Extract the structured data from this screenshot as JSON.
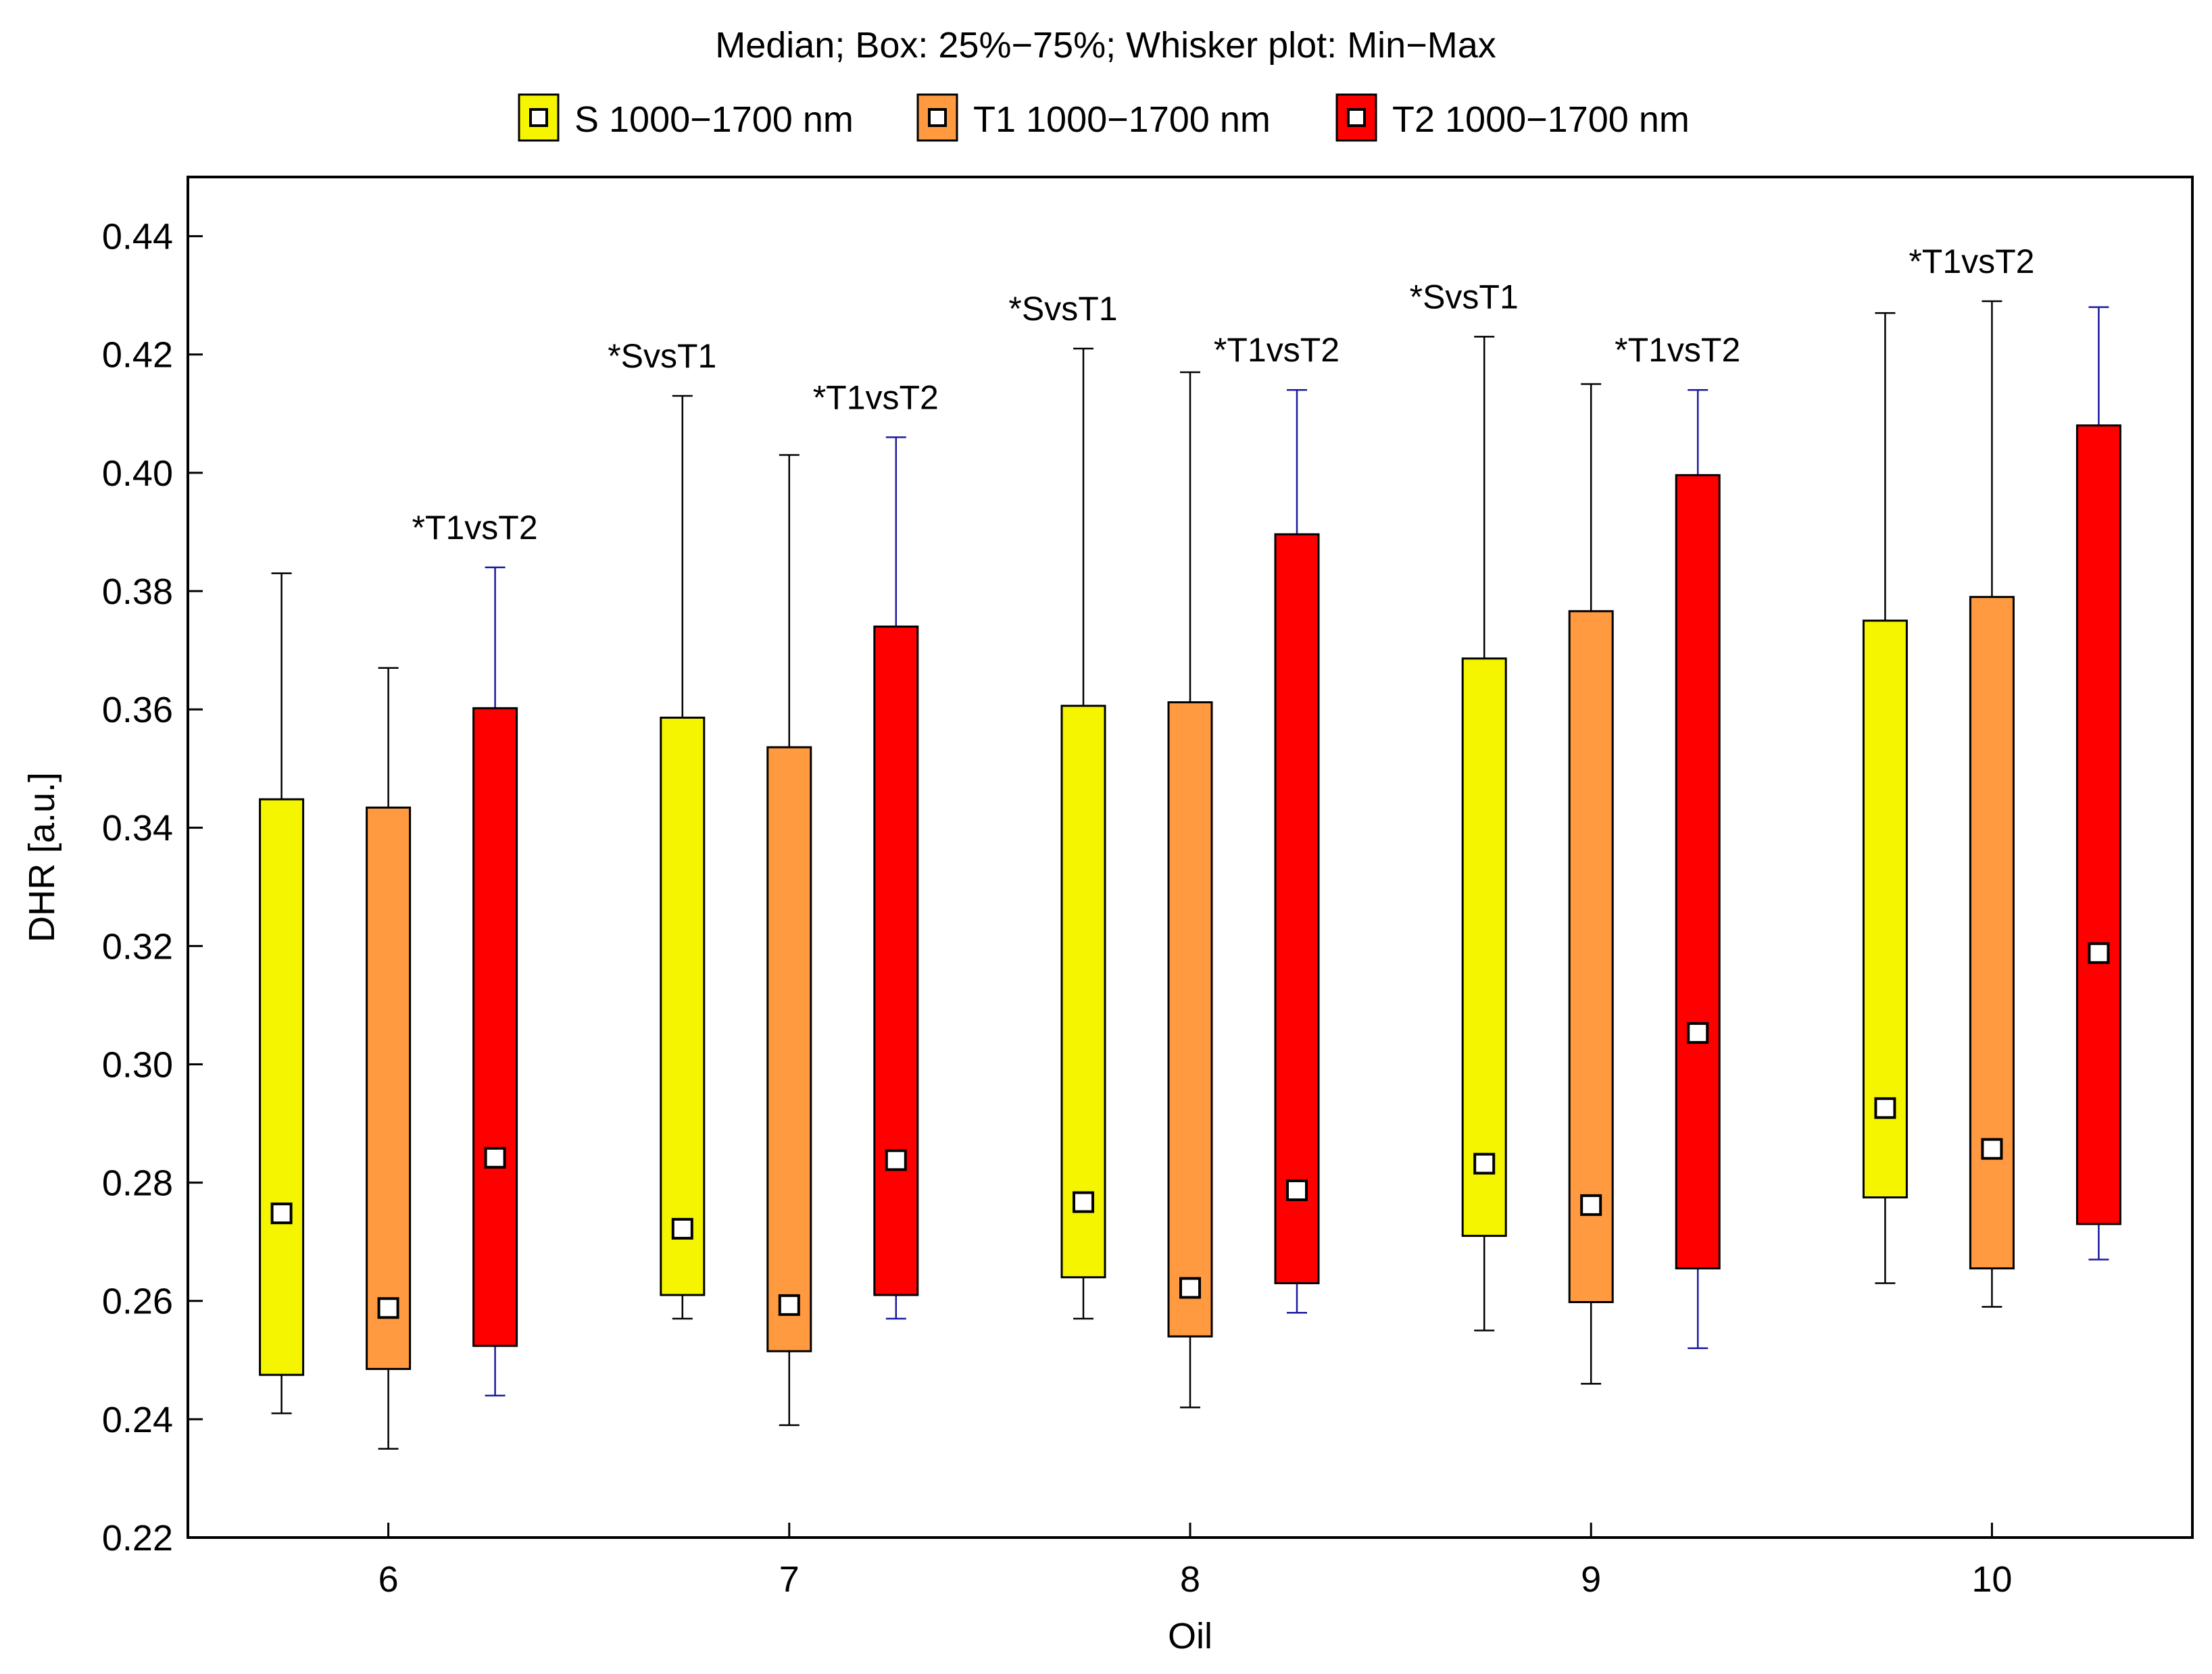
{
  "chart_data": {
    "type": "boxplot",
    "title": "Median; Box: 25%−75%; Whisker plot: Min−Max",
    "xlabel": "Oil",
    "ylabel": "DHR [a.u.]",
    "ylim": [
      0.22,
      0.45
    ],
    "yticks": [
      "0.22",
      "0.24",
      "0.26",
      "0.28",
      "0.30",
      "0.32",
      "0.34",
      "0.36",
      "0.38",
      "0.40",
      "0.42",
      "0.44"
    ],
    "categories": [
      "6",
      "7",
      "8",
      "9",
      "10"
    ],
    "legend_position": "top",
    "series": [
      {
        "name": "S 1000−1700 nm",
        "color": "#f5f500",
        "whisker_color": "#000000",
        "stats": [
          {
            "min": 0.241,
            "q1": 0.2475,
            "median": 0.2748,
            "q3": 0.3448,
            "max": 0.383
          },
          {
            "min": 0.257,
            "q1": 0.261,
            "median": 0.2722,
            "q3": 0.3586,
            "max": 0.413
          },
          {
            "min": 0.257,
            "q1": 0.264,
            "median": 0.2767,
            "q3": 0.3606,
            "max": 0.421
          },
          {
            "min": 0.255,
            "q1": 0.271,
            "median": 0.2832,
            "q3": 0.3686,
            "max": 0.423
          },
          {
            "min": 0.263,
            "q1": 0.2775,
            "median": 0.2926,
            "q3": 0.375,
            "max": 0.427
          }
        ]
      },
      {
        "name": "T1 1000−1700 nm",
        "color": "#ff9a40",
        "whisker_color": "#000000",
        "stats": [
          {
            "min": 0.235,
            "q1": 0.2485,
            "median": 0.2588,
            "q3": 0.3434,
            "max": 0.367
          },
          {
            "min": 0.239,
            "q1": 0.2515,
            "median": 0.2593,
            "q3": 0.3536,
            "max": 0.403
          },
          {
            "min": 0.242,
            "q1": 0.254,
            "median": 0.2622,
            "q3": 0.3612,
            "max": 0.417
          },
          {
            "min": 0.246,
            "q1": 0.2598,
            "median": 0.2762,
            "q3": 0.3766,
            "max": 0.415
          },
          {
            "min": 0.259,
            "q1": 0.2655,
            "median": 0.2857,
            "q3": 0.379,
            "max": 0.429
          }
        ]
      },
      {
        "name": "T2 1000−1700 nm",
        "color": "#ff0000",
        "whisker_color": "#1a1aa0",
        "stats": [
          {
            "min": 0.244,
            "q1": 0.2524,
            "median": 0.2842,
            "q3": 0.3602,
            "max": 0.384
          },
          {
            "min": 0.257,
            "q1": 0.261,
            "median": 0.2838,
            "q3": 0.374,
            "max": 0.406
          },
          {
            "min": 0.258,
            "q1": 0.263,
            "median": 0.2787,
            "q3": 0.3896,
            "max": 0.414
          },
          {
            "min": 0.252,
            "q1": 0.2655,
            "median": 0.3053,
            "q3": 0.3996,
            "max": 0.414
          },
          {
            "min": 0.267,
            "q1": 0.273,
            "median": 0.3188,
            "q3": 0.408,
            "max": 0.428
          }
        ]
      }
    ],
    "annotations": [
      {
        "text": "*T1vsT2",
        "category": "6",
        "series": 2
      },
      {
        "text": "*SvsT1",
        "category": "7",
        "series": 0
      },
      {
        "text": "*T1vsT2",
        "category": "7",
        "series": 2
      },
      {
        "text": "*SvsT1",
        "category": "8",
        "series": 0
      },
      {
        "text": "*T1vsT2",
        "category": "8",
        "series": 2
      },
      {
        "text": "*SvsT1",
        "category": "9",
        "series": 0
      },
      {
        "text": "*T1vsT2",
        "category": "9",
        "series": 2
      },
      {
        "text": "*T1vsT2",
        "category": "10",
        "series": 1
      }
    ]
  }
}
